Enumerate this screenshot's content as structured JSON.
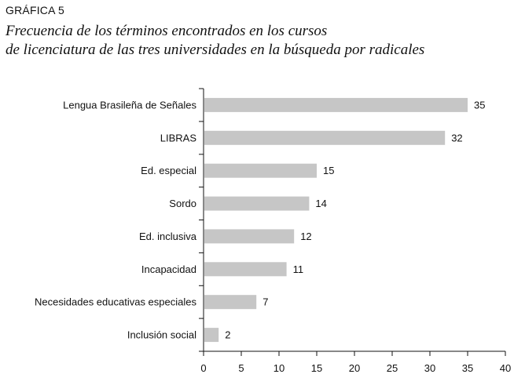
{
  "figure": {
    "label": "GRÁFICA 5",
    "title_line1": "Frecuencia de los términos encontrados en los cursos",
    "title_line2": "de licenciatura de las tres universidades en la búsqueda por radicales"
  },
  "chart_data": {
    "type": "bar",
    "orientation": "horizontal",
    "categories": [
      "Lengua Brasileña de Señales",
      "LIBRAS",
      "Ed. especial",
      "Sordo",
      "Ed. inclusiva",
      "Incapacidad",
      "Necesidades educativas especiales",
      "Inclusión social"
    ],
    "values": [
      35,
      32,
      15,
      14,
      12,
      11,
      7,
      2
    ],
    "xlim": [
      0,
      40
    ],
    "xticks": [
      0,
      5,
      10,
      15,
      20,
      25,
      30,
      35,
      40
    ],
    "bar_color": "#c6c6c6",
    "axis_color": "#111111",
    "grid": false,
    "legend": "none"
  }
}
